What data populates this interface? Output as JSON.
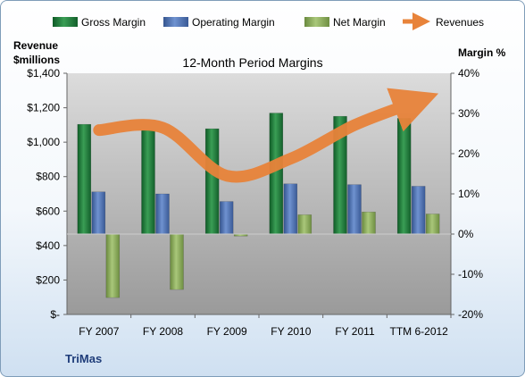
{
  "chart_data": {
    "type": "bar",
    "title": "12-Month Period Margins",
    "company": "TriMas",
    "ylabel_left_line1": "Revenue",
    "ylabel_left_line2": "$millions",
    "ylabel_right": "Margin %",
    "categories": [
      "FY 2007",
      "FY 2008",
      "FY 2009",
      "FY 2010",
      "FY 2011",
      "TTM 6-2012"
    ],
    "left_axis": {
      "min": 0,
      "max": 1400,
      "ticks": [
        "$-",
        "$200",
        "$400",
        "$600",
        "$800",
        "$1,000",
        "$1,200",
        "$1,400"
      ]
    },
    "right_axis": {
      "min": -20,
      "max": 40,
      "ticks": [
        "-20%",
        "-10%",
        "0%",
        "10%",
        "20%",
        "30%",
        "40%"
      ]
    },
    "legend_position": "top",
    "series": [
      {
        "name": "Gross Margin",
        "kind": "bar",
        "axis": "right",
        "color": "#1f7a3a",
        "values": [
          27.3,
          25.8,
          26.2,
          30.1,
          29.3,
          28.8
        ]
      },
      {
        "name": "Operating Margin",
        "kind": "bar",
        "axis": "right",
        "color": "#4a6fb5",
        "values": [
          10.5,
          10.0,
          8.1,
          12.5,
          12.3,
          11.9
        ]
      },
      {
        "name": "Net Margin",
        "kind": "bar",
        "axis": "right",
        "color": "#8bab5a",
        "values": [
          -15.8,
          -13.8,
          -0.5,
          4.8,
          5.5,
          5.0
        ]
      },
      {
        "name": "Revenues",
        "kind": "line",
        "axis": "left",
        "color": "#e8833a",
        "values": [
          1070,
          1084,
          805,
          905,
          1100,
          1240
        ]
      }
    ]
  }
}
